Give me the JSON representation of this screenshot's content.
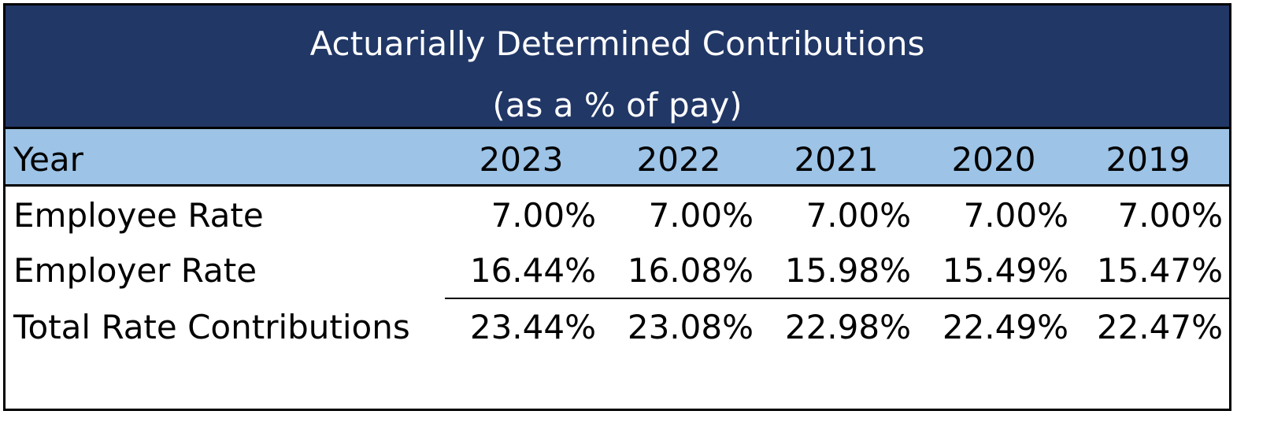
{
  "title": "Actuarially Determined Contributions",
  "subtitle": "(as a % of pay)",
  "header": {
    "label": "Year",
    "years": [
      "2023",
      "2022",
      "2021",
      "2020",
      "2019"
    ]
  },
  "rows": [
    {
      "label": "Employee Rate",
      "values": [
        "7.00%",
        "7.00%",
        "7.00%",
        "7.00%",
        "7.00%"
      ]
    },
    {
      "label": "Employer Rate",
      "values": [
        "16.44%",
        "16.08%",
        "15.98%",
        "15.49%",
        "15.47%"
      ]
    },
    {
      "label": "Total Rate Contributions",
      "values": [
        "23.44%",
        "23.08%",
        "22.98%",
        "22.49%",
        "22.47%"
      ]
    }
  ],
  "colors": {
    "title_band": "#213766",
    "header_band": "#9dc3e6",
    "title_text": "#ffffff"
  }
}
